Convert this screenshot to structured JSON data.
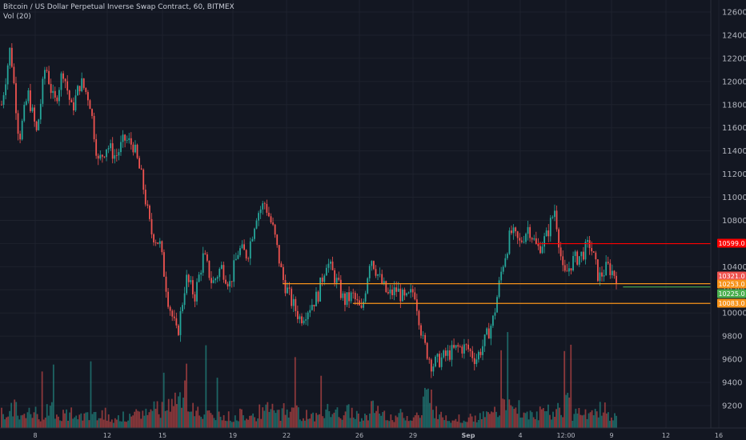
{
  "legend": {
    "symbol_line": "Bitcoin / US Dollar Perpetual Inverse Swap Contract, 60, BITMEX",
    "volume_line": "Vol (20)"
  },
  "colors": {
    "background": "#131722",
    "up": "#26a69a",
    "down": "#ef5350",
    "axis_text": "#b2b5be",
    "resistance": "#ff0000",
    "support_orange": "#f7931a",
    "support_green": "#4caf50"
  },
  "chart_data": {
    "type": "candlestick",
    "title": "Bitcoin / US Dollar Perpetual Inverse Swap Contract, 60, BITMEX",
    "ylim": [
      9100,
      12700
    ],
    "y_ticks": [
      12600,
      12400,
      12200,
      12000,
      11800,
      11600,
      11400,
      11200,
      11000,
      10800,
      10600,
      10400,
      10200,
      10000,
      9800,
      9600,
      9400,
      9200
    ],
    "x_tick_labels": [
      "8",
      "12",
      "15",
      "19",
      "22",
      "26",
      "29",
      "Sep",
      "4",
      "12:00",
      "9",
      "12",
      "16"
    ],
    "price_path": [
      [
        0,
        11800
      ],
      [
        1,
        12300
      ],
      [
        2,
        11500
      ],
      [
        3,
        11900
      ],
      [
        4,
        11550
      ],
      [
        5,
        12150
      ],
      [
        6,
        11800
      ],
      [
        7,
        12100
      ],
      [
        8,
        11750
      ],
      [
        9,
        12000
      ],
      [
        10,
        11850
      ],
      [
        11,
        11300
      ],
      [
        12,
        11450
      ],
      [
        13,
        11350
      ],
      [
        14,
        11500
      ],
      [
        15,
        11450
      ],
      [
        16,
        11150
      ],
      [
        17,
        10700
      ],
      [
        18,
        10600
      ],
      [
        19,
        10100
      ],
      [
        20,
        9800
      ],
      [
        21,
        10300
      ],
      [
        22,
        10150
      ],
      [
        23,
        10500
      ],
      [
        24,
        10250
      ],
      [
        25,
        10400
      ],
      [
        26,
        10250
      ],
      [
        27,
        10550
      ],
      [
        28,
        10500
      ],
      [
        29,
        10850
      ],
      [
        30,
        10950
      ],
      [
        31,
        10700
      ],
      [
        32,
        10300
      ],
      [
        33,
        10100
      ],
      [
        34,
        9950
      ],
      [
        35,
        10050
      ],
      [
        36,
        10150
      ],
      [
        37,
        10450
      ],
      [
        38,
        10300
      ],
      [
        39,
        10100
      ],
      [
        40,
        10150
      ],
      [
        41,
        10000
      ],
      [
        42,
        10500
      ],
      [
        43,
        10300
      ],
      [
        44,
        10150
      ],
      [
        45,
        10200
      ],
      [
        46,
        10100
      ],
      [
        47,
        10200
      ],
      [
        48,
        9750
      ],
      [
        49,
        9550
      ],
      [
        50,
        9600
      ],
      [
        51,
        9650
      ],
      [
        52,
        9700
      ],
      [
        53,
        9700
      ],
      [
        54,
        9600
      ],
      [
        55,
        9750
      ],
      [
        56,
        9950
      ],
      [
        57,
        10400
      ],
      [
        58,
        10700
      ],
      [
        59,
        10600
      ],
      [
        60,
        10750
      ],
      [
        61,
        10550
      ],
      [
        62,
        10650
      ],
      [
        63,
        10900
      ],
      [
        64,
        10300
      ],
      [
        65,
        10450
      ],
      [
        66,
        10500
      ],
      [
        67,
        10600
      ],
      [
        68,
        10300
      ],
      [
        69,
        10400
      ],
      [
        70,
        10321
      ]
    ],
    "volume_profile": [
      0.45,
      0.6,
      0.35,
      0.5,
      0.4,
      0.55,
      0.35,
      0.45,
      0.3,
      0.4,
      0.35,
      0.5,
      0.3,
      0.35,
      0.3,
      0.4,
      0.5,
      0.7,
      0.6,
      0.9,
      1.0,
      0.6,
      0.45,
      0.5,
      0.4,
      0.35,
      0.35,
      0.45,
      0.4,
      0.5,
      0.55,
      0.45,
      0.6,
      0.5,
      0.4,
      0.35,
      0.4,
      0.55,
      0.45,
      0.5,
      0.4,
      0.35,
      0.6,
      0.45,
      0.35,
      0.4,
      0.35,
      0.4,
      0.95,
      0.55,
      0.35,
      0.3,
      0.3,
      0.3,
      0.35,
      0.4,
      0.5,
      0.7,
      0.6,
      0.55,
      0.5,
      0.45,
      0.5,
      0.6,
      0.85,
      0.45,
      0.4,
      0.4,
      0.55,
      0.35,
      0.3
    ],
    "levels": [
      {
        "label": "10599.0",
        "value": 10599,
        "color": "#ff0000",
        "from_step": 61
      },
      {
        "label": "10321.0",
        "value": 10321,
        "color": "#ef5350",
        "from_step": 70
      },
      {
        "label": "10253.0",
        "value": 10253,
        "color": "#f7931a",
        "from_step": 32
      },
      {
        "label": "10225.0",
        "value": 10225,
        "color": "#4caf50",
        "from_step": 58
      },
      {
        "label": "10083.0",
        "value": 10083,
        "color": "#f7931a",
        "from_step": 40
      }
    ]
  }
}
